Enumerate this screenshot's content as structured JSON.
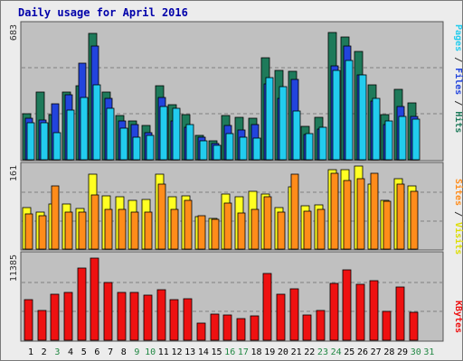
{
  "title": "Daily usage for April 2016",
  "colors": {
    "hits": "#1e7a5a",
    "files": "#2244dd",
    "pages": "#22ccee",
    "visits": "#ffff22",
    "sites": "#ff8c1a",
    "kbytes": "#ee1111",
    "weekday_label": "#000000",
    "weekend_label": "#228844",
    "panel_bg": "#c0c0c0"
  },
  "panels": {
    "top": {
      "max_label": "683",
      "legend": [
        {
          "text": "Pages",
          "color": "#22ccee"
        },
        {
          "text": " / ",
          "color": "#333333"
        },
        {
          "text": "Files",
          "color": "#2244dd"
        },
        {
          "text": " / ",
          "color": "#333333"
        },
        {
          "text": "Hits",
          "color": "#1e7a5a"
        }
      ]
    },
    "mid": {
      "max_label": "161",
      "legend": [
        {
          "text": "Sites",
          "color": "#ff8c1a"
        },
        {
          "text": " / ",
          "color": "#333333"
        },
        {
          "text": "Visits",
          "color": "#ffff22"
        }
      ]
    },
    "bot": {
      "max_label": "11385",
      "legend": [
        {
          "text": "KBytes",
          "color": "#ee1111"
        }
      ]
    }
  },
  "chart_data": {
    "type": "bar",
    "title": "Daily usage for April 2016",
    "x": [
      "1",
      "2",
      "3",
      "4",
      "5",
      "6",
      "7",
      "8",
      "9",
      "10",
      "11",
      "12",
      "13",
      "14",
      "15",
      "16",
      "17",
      "18",
      "19",
      "20",
      "21",
      "22",
      "23",
      "24",
      "25",
      "26",
      "27",
      "28",
      "29",
      "30",
      "31"
    ],
    "weekend_days": [
      "3",
      "9",
      "10",
      "16",
      "17",
      "23",
      "24",
      "30",
      "31"
    ],
    "ylim_top": [
      0,
      683
    ],
    "ylim_mid": [
      0,
      161
    ],
    "ylim_bot": [
      0,
      11385
    ],
    "series": [
      {
        "name": "Hits",
        "panel": "top",
        "values": [
          230,
          338,
          227,
          340,
          369,
          633,
          341,
          223,
          196,
          170,
          371,
          275,
          226,
          120,
          93,
          220,
          213,
          207,
          510,
          447,
          442,
          168,
          213,
          640,
          613,
          542,
          374,
          225,
          354,
          284,
          0
        ]
      },
      {
        "name": "Files",
        "panel": "top",
        "values": [
          209,
          200,
          279,
          327,
          485,
          569,
          307,
          196,
          177,
          135,
          310,
          196,
          161,
          111,
          80,
          174,
          149,
          176,
          378,
          307,
          401,
          128,
          154,
          469,
          569,
          423,
          293,
          177,
          266,
          215,
          0
        ]
      },
      {
        "name": "Pages",
        "panel": "top",
        "values": [
          185,
          184,
          136,
          250,
          310,
          374,
          257,
          159,
          114,
          124,
          269,
          258,
          178,
          96,
          73,
          131,
          113,
          108,
          410,
          365,
          243,
          129,
          164,
          449,
          498,
          423,
          307,
          196,
          216,
          202,
          0
        ]
      },
      {
        "name": "Visits",
        "panel": "mid",
        "values": [
          78,
          70,
          86,
          85,
          77,
          143,
          101,
          99,
          93,
          95,
          142,
          99,
          101,
          62,
          58,
          105,
          100,
          109,
          104,
          78,
          118,
          82,
          84,
          150,
          150,
          157,
          123,
          93,
          133,
          120,
          0
        ]
      },
      {
        "name": "Sites",
        "panel": "mid",
        "values": [
          66,
          64,
          120,
          70,
          71,
          102,
          75,
          75,
          70,
          70,
          123,
          75,
          92,
          63,
          56,
          88,
          69,
          76,
          100,
          70,
          143,
          72,
          76,
          144,
          131,
          134,
          144,
          91,
          124,
          110,
          0
        ]
      },
      {
        "name": "KBytes",
        "panel": "bot",
        "values": [
          5300,
          3900,
          6000,
          6300,
          9500,
          10800,
          7600,
          6300,
          6300,
          5900,
          6600,
          5300,
          5400,
          2200,
          3400,
          3300,
          2800,
          3200,
          8800,
          6100,
          6800,
          3300,
          3900,
          7500,
          9300,
          7400,
          7800,
          3800,
          7000,
          3700,
          0
        ]
      }
    ]
  }
}
